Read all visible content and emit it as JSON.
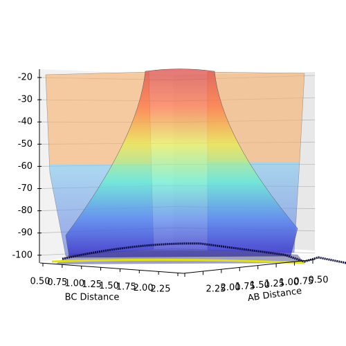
{
  "chart_data": {
    "type": "surface3d",
    "x_label": "BC Distance",
    "y_label": "AB Distance",
    "xlim": [
      0.5,
      2.25
    ],
    "xticks": [
      {
        "value": 0.5,
        "label": "0.50"
      },
      {
        "value": 0.75,
        "label": "0.75"
      },
      {
        "value": 1.0,
        "label": "1.00"
      },
      {
        "value": 1.25,
        "label": "1.25"
      },
      {
        "value": 1.5,
        "label": "1.50"
      },
      {
        "value": 1.75,
        "label": "1.75"
      },
      {
        "value": 2.0,
        "label": "2.00"
      },
      {
        "value": 2.25,
        "label": "2.25"
      }
    ],
    "ylim": [
      0.5,
      2.25
    ],
    "yticks": [
      {
        "value": 2.25,
        "label": "2.25"
      },
      {
        "value": 2.0,
        "label": "2.00"
      },
      {
        "value": 1.75,
        "label": "1.75"
      },
      {
        "value": 1.5,
        "label": "1.50"
      },
      {
        "value": 1.25,
        "label": "1.25"
      },
      {
        "value": 1.0,
        "label": "1.00"
      },
      {
        "value": 0.75,
        "label": "0.75"
      },
      {
        "value": 0.5,
        "label": "0.50"
      }
    ],
    "zlim": [
      -104,
      -18
    ],
    "zticks": [
      -20,
      -30,
      -40,
      -50,
      -60,
      -70,
      -80,
      -90,
      -100
    ],
    "grid": true,
    "colormap": "jet"
  }
}
